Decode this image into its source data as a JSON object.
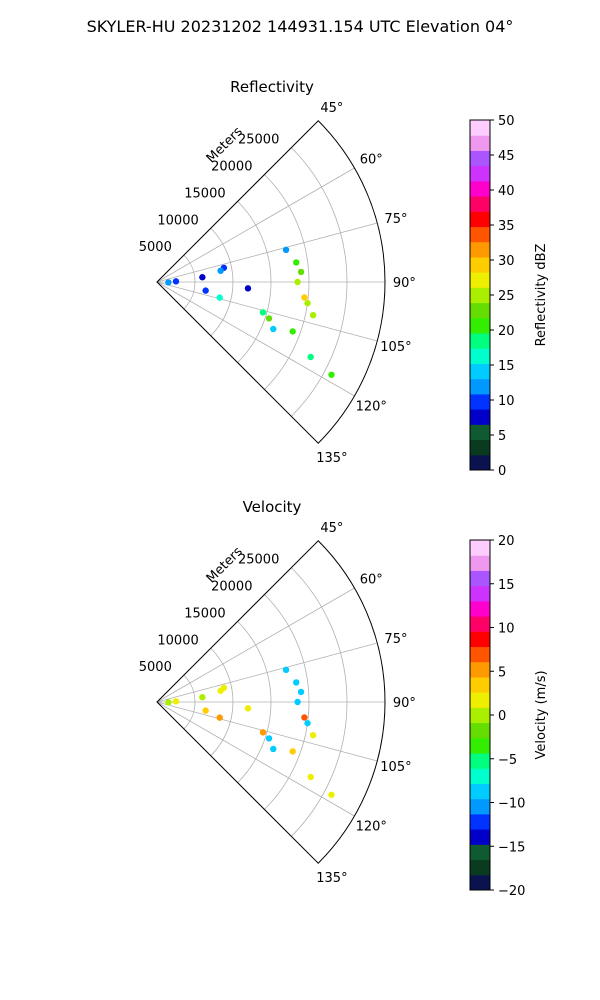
{
  "suptitle": "SKYLER-HU  20231202  144931.154 UTC Elevation 04°",
  "chart_data": [
    {
      "type": "polar-sector",
      "title": "Reflectivity",
      "radial_label": "Meters",
      "theta_range_deg": [
        45,
        135
      ],
      "r_range_m": [
        0,
        30000
      ],
      "r_ticks": [
        5000,
        10000,
        15000,
        20000,
        25000
      ],
      "r_tick_labels": [
        "5000",
        "10000",
        "15000",
        "20000",
        "25000"
      ],
      "theta_ticks": [
        45,
        60,
        75,
        90,
        105,
        120,
        135
      ],
      "theta_tick_labels": [
        "45°",
        "60°",
        "75°",
        "90°",
        "105°",
        "120°",
        "135°"
      ],
      "grid": true,
      "colorbar": {
        "label": "Reflectivity dBZ",
        "range": [
          0,
          50
        ],
        "ticks": [
          0,
          5,
          10,
          15,
          20,
          25,
          30,
          35,
          40,
          45,
          50
        ],
        "tick_labels": [
          "0",
          "5",
          "10",
          "15",
          "20",
          "25",
          "30",
          "35",
          "40",
          "45",
          "50"
        ],
        "colormap": [
          "#0a1250",
          "#0a3a20",
          "#0f5a30",
          "#0000c8",
          "#0033ff",
          "#0099ff",
          "#00ccff",
          "#00ffcc",
          "#00ff80",
          "#33ee00",
          "#66dd00",
          "#aaee00",
          "#eeee00",
          "#ffcc00",
          "#ff9900",
          "#ff5500",
          "#ff0000",
          "#ff0066",
          "#ff00cc",
          "#cc33ff",
          "#aa55ff",
          "#ee99ee",
          "#ffccff"
        ]
      },
      "echoes": [
        {
          "az": 76,
          "r": 17500,
          "v": 13
        },
        {
          "az": 78,
          "r": 9000,
          "v": 9
        },
        {
          "az": 80,
          "r": 8500,
          "v": 11
        },
        {
          "az": 82,
          "r": 18500,
          "v": 20
        },
        {
          "az": 84,
          "r": 6000,
          "v": 8
        },
        {
          "az": 86,
          "r": 19000,
          "v": 22
        },
        {
          "az": 88,
          "r": 2500,
          "v": 10
        },
        {
          "az": 90,
          "r": 18500,
          "v": 24
        },
        {
          "az": 92,
          "r": 1500,
          "v": 12
        },
        {
          "az": 94,
          "r": 12000,
          "v": 8
        },
        {
          "az": 96,
          "r": 19500,
          "v": 30
        },
        {
          "az": 98,
          "r": 20000,
          "v": 26
        },
        {
          "az": 100,
          "r": 6500,
          "v": 9
        },
        {
          "az": 102,
          "r": 21000,
          "v": 24
        },
        {
          "az": 104,
          "r": 8500,
          "v": 16
        },
        {
          "az": 106,
          "r": 14500,
          "v": 18
        },
        {
          "az": 108,
          "r": 15500,
          "v": 22
        },
        {
          "az": 110,
          "r": 19000,
          "v": 21
        },
        {
          "az": 112,
          "r": 16500,
          "v": 15
        },
        {
          "az": 116,
          "r": 22500,
          "v": 18
        },
        {
          "az": 118,
          "r": 26000,
          "v": 20
        }
      ]
    },
    {
      "type": "polar-sector",
      "title": "Velocity",
      "radial_label": "Meters",
      "theta_range_deg": [
        45,
        135
      ],
      "r_range_m": [
        0,
        30000
      ],
      "r_ticks": [
        5000,
        10000,
        15000,
        20000,
        25000
      ],
      "r_tick_labels": [
        "5000",
        "10000",
        "15000",
        "20000",
        "25000"
      ],
      "theta_ticks": [
        45,
        60,
        75,
        90,
        105,
        120,
        135
      ],
      "theta_tick_labels": [
        "45°",
        "60°",
        "75°",
        "90°",
        "105°",
        "120°",
        "135°"
      ],
      "grid": true,
      "colorbar": {
        "label": "Velocity (m/s)",
        "range": [
          -20,
          20
        ],
        "ticks": [
          -20,
          -15,
          -10,
          -5,
          0,
          5,
          10,
          15,
          20
        ],
        "tick_labels": [
          "−20",
          "−15",
          "−10",
          "−5",
          "0",
          "5",
          "10",
          "15",
          "20"
        ],
        "colormap": [
          "#0a1250",
          "#0a3a20",
          "#0f5a30",
          "#0000c8",
          "#0033ff",
          "#0099ff",
          "#00ccff",
          "#00ffcc",
          "#00ff80",
          "#33ee00",
          "#66dd00",
          "#aaee00",
          "#eeee00",
          "#ffcc00",
          "#ff9900",
          "#ff5500",
          "#ff0000",
          "#ff0066",
          "#ff00cc",
          "#cc33ff",
          "#aa55ff",
          "#ee99ee",
          "#ffccff"
        ]
      },
      "echoes": [
        {
          "az": 76,
          "r": 17500,
          "v": -9
        },
        {
          "az": 78,
          "r": 9000,
          "v": 1
        },
        {
          "az": 80,
          "r": 8500,
          "v": 2
        },
        {
          "az": 82,
          "r": 18500,
          "v": -9
        },
        {
          "az": 84,
          "r": 6000,
          "v": 0
        },
        {
          "az": 86,
          "r": 19000,
          "v": -9
        },
        {
          "az": 88,
          "r": 2500,
          "v": 1
        },
        {
          "az": 90,
          "r": 18500,
          "v": -9
        },
        {
          "az": 92,
          "r": 1500,
          "v": 0
        },
        {
          "az": 94,
          "r": 12000,
          "v": 2
        },
        {
          "az": 96,
          "r": 19500,
          "v": 7
        },
        {
          "az": 98,
          "r": 20000,
          "v": -8
        },
        {
          "az": 100,
          "r": 6500,
          "v": 3
        },
        {
          "az": 102,
          "r": 21000,
          "v": 1
        },
        {
          "az": 104,
          "r": 8500,
          "v": 5
        },
        {
          "az": 106,
          "r": 14500,
          "v": 6
        },
        {
          "az": 108,
          "r": 15500,
          "v": -8
        },
        {
          "az": 110,
          "r": 19000,
          "v": 3
        },
        {
          "az": 112,
          "r": 16500,
          "v": -8
        },
        {
          "az": 116,
          "r": 22500,
          "v": 2
        },
        {
          "az": 118,
          "r": 26000,
          "v": 1
        }
      ]
    }
  ]
}
